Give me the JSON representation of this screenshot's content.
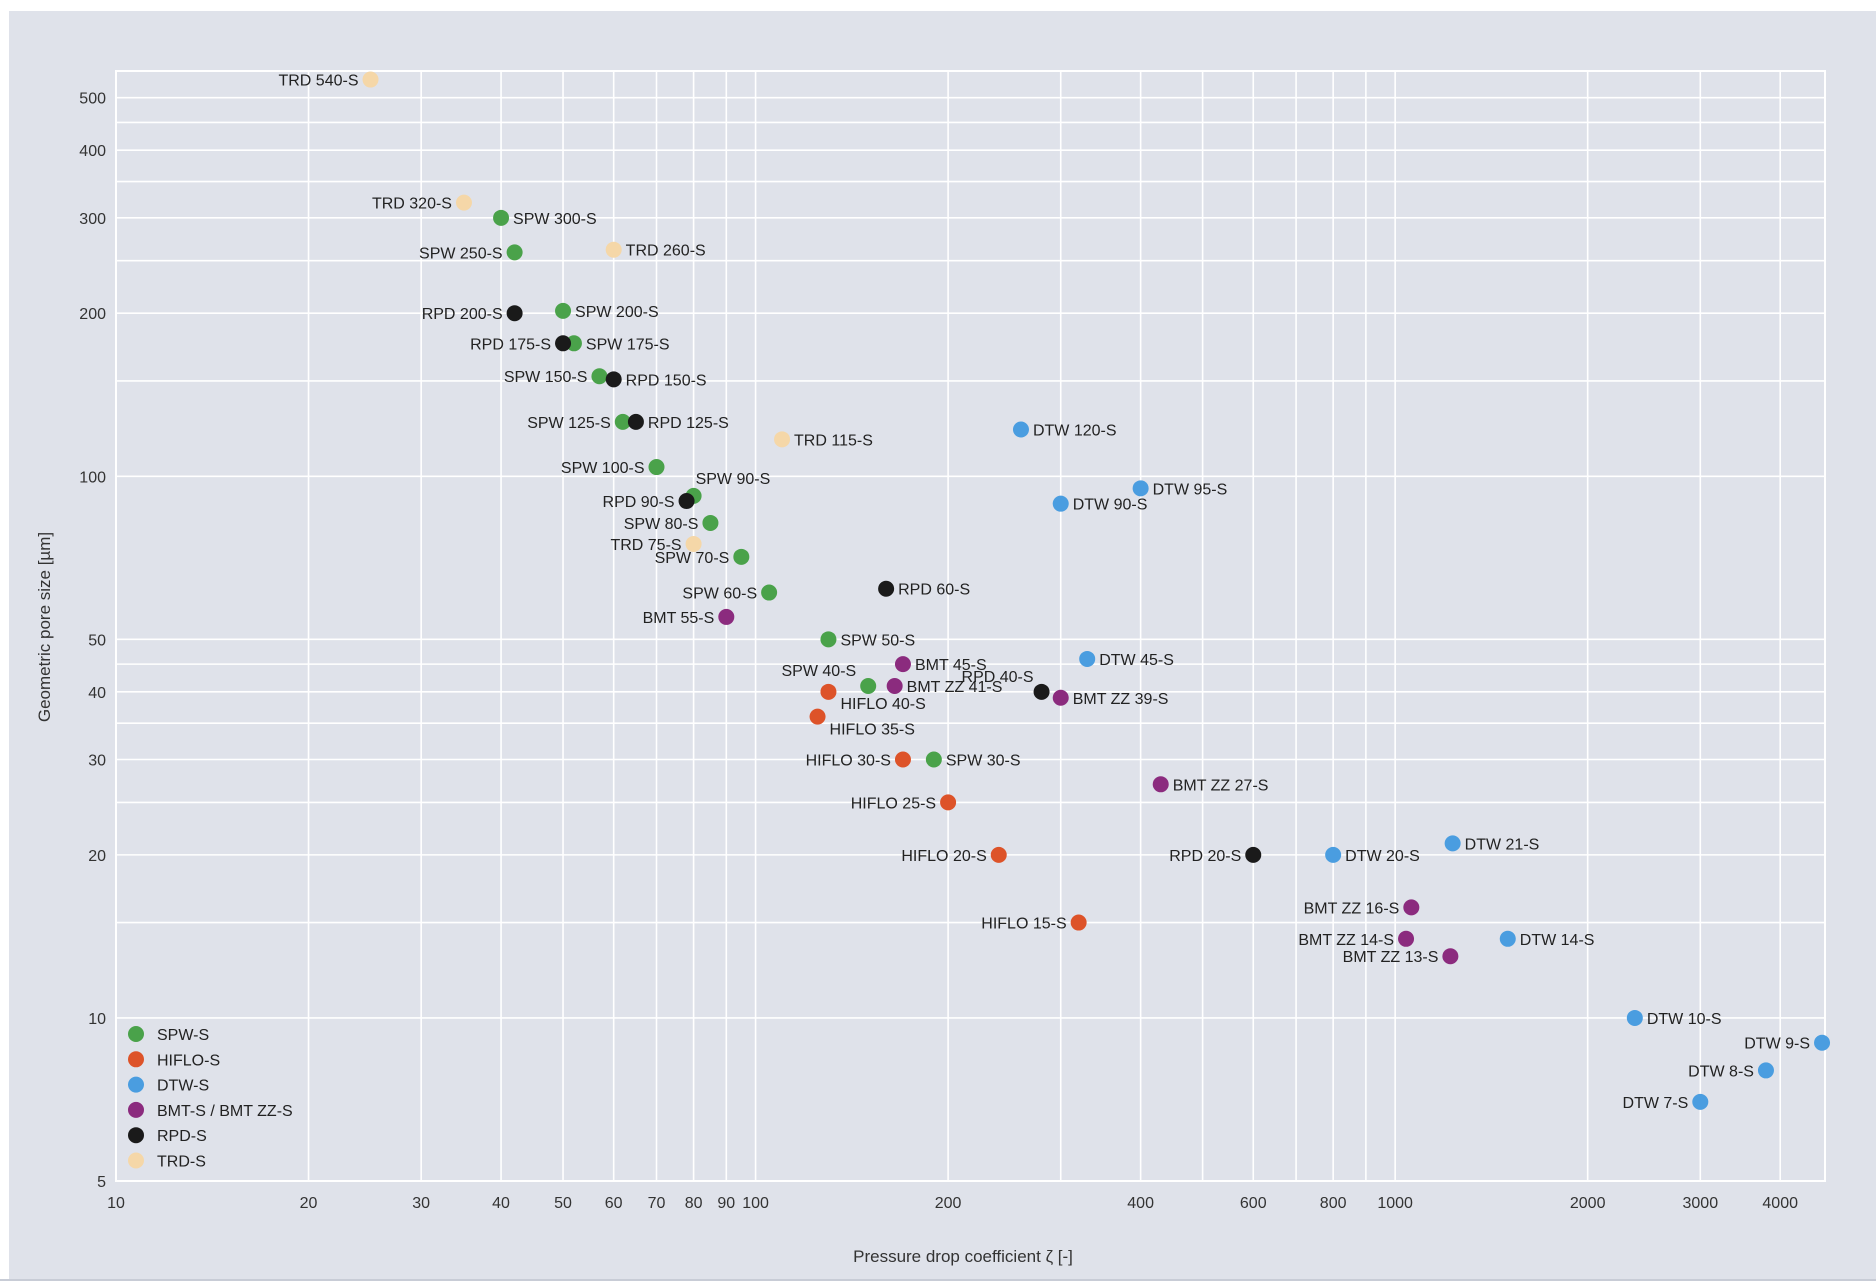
{
  "chart_data": {
    "type": "scatter",
    "xlabel": "Pressure drop coefficient ζ [-]",
    "ylabel": "Geometric pore size [µm]",
    "x_scale": "log",
    "y_scale": "log",
    "xlim": [
      10,
      4700
    ],
    "ylim": [
      5,
      560
    ],
    "grid": true,
    "legend_position": "bottom-left",
    "x_ticks": [
      10,
      20,
      30,
      40,
      50,
      60,
      70,
      80,
      90,
      100,
      200,
      400,
      600,
      800,
      1000,
      2000,
      3000,
      4000
    ],
    "x_gridlines": [
      10,
      20,
      30,
      40,
      50,
      60,
      70,
      80,
      90,
      100,
      200,
      300,
      400,
      500,
      600,
      700,
      800,
      900,
      1000,
      2000,
      3000,
      4000
    ],
    "y_ticks": [
      5,
      10,
      20,
      30,
      40,
      50,
      100,
      200,
      300,
      400,
      500
    ],
    "y_gridlines": [
      5,
      10,
      15,
      20,
      25,
      30,
      35,
      40,
      45,
      50,
      100,
      150,
      200,
      250,
      300,
      350,
      400,
      450,
      500
    ],
    "series": [
      {
        "name": "SPW-S",
        "color": "#4aa24a",
        "points": [
          {
            "label": "SPW 300-S",
            "x": 40,
            "y": 300
          },
          {
            "label": "SPW 250-S",
            "x": 42,
            "y": 259
          },
          {
            "label": "SPW 200-S",
            "x": 50,
            "y": 202
          },
          {
            "label": "SPW 175-S",
            "x": 52,
            "y": 176
          },
          {
            "label": "SPW 150-S",
            "x": 57,
            "y": 153
          },
          {
            "label": "SPW 125-S",
            "x": 62,
            "y": 126
          },
          {
            "label": "SPW 100-S",
            "x": 70,
            "y": 104
          },
          {
            "label": "SPW 90-S",
            "x": 80,
            "y": 92
          },
          {
            "label": "SPW 80-S",
            "x": 85,
            "y": 82
          },
          {
            "label": "SPW 70-S",
            "x": 95,
            "y": 71
          },
          {
            "label": "SPW 60-S",
            "x": 105,
            "y": 61
          },
          {
            "label": "SPW 50-S",
            "x": 130,
            "y": 50
          },
          {
            "label": "SPW 40-S",
            "x": 150,
            "y": 41
          },
          {
            "label": "SPW 30-S",
            "x": 190,
            "y": 30
          }
        ]
      },
      {
        "name": "HIFLO-S",
        "color": "#dd5329",
        "points": [
          {
            "label": "HIFLO 40-S",
            "x": 130,
            "y": 40
          },
          {
            "label": "HIFLO 35-S",
            "x": 125,
            "y": 36
          },
          {
            "label": "HIFLO 30-S",
            "x": 170,
            "y": 30
          },
          {
            "label": "HIFLO 25-S",
            "x": 200,
            "y": 25
          },
          {
            "label": "HIFLO 20-S",
            "x": 240,
            "y": 20
          },
          {
            "label": "HIFLO 15-S",
            "x": 320,
            "y": 15
          }
        ]
      },
      {
        "name": "DTW-S",
        "color": "#4a9de0",
        "points": [
          {
            "label": "DTW 120-S",
            "x": 260,
            "y": 122
          },
          {
            "label": "DTW 95-S",
            "x": 400,
            "y": 95
          },
          {
            "label": "DTW 90-S",
            "x": 300,
            "y": 89
          },
          {
            "label": "DTW 45-S",
            "x": 330,
            "y": 46
          },
          {
            "label": "DTW 21-S",
            "x": 1230,
            "y": 21
          },
          {
            "label": "DTW 20-S",
            "x": 800,
            "y": 20
          },
          {
            "label": "DTW 14-S",
            "x": 1500,
            "y": 14
          },
          {
            "label": "DTW 10-S",
            "x": 2370,
            "y": 10
          },
          {
            "label": "DTW 9-S",
            "x": 4650,
            "y": 9
          },
          {
            "label": "DTW 8-S",
            "x": 3800,
            "y": 8
          },
          {
            "label": "DTW 7-S",
            "x": 3000,
            "y": 7
          }
        ]
      },
      {
        "name": "BMT-S / BMT ZZ-S",
        "color": "#8b2b7e",
        "points": [
          {
            "label": "BMT 55-S",
            "x": 90,
            "y": 55
          },
          {
            "label": "BMT 45-S",
            "x": 170,
            "y": 45
          },
          {
            "label": "BMT ZZ 41-S",
            "x": 165,
            "y": 41
          },
          {
            "label": "BMT ZZ 39-S",
            "x": 300,
            "y": 39
          },
          {
            "label": "BMT ZZ 27-S",
            "x": 430,
            "y": 27
          },
          {
            "label": "BMT ZZ 16-S",
            "x": 1060,
            "y": 16
          },
          {
            "label": "BMT ZZ 14-S",
            "x": 1040,
            "y": 14
          },
          {
            "label": "BMT ZZ 13-S",
            "x": 1220,
            "y": 13
          }
        ]
      },
      {
        "name": "RPD-S",
        "color": "#1a1a1a",
        "points": [
          {
            "label": "RPD 200-S",
            "x": 42,
            "y": 200
          },
          {
            "label": "RPD 175-S",
            "x": 50,
            "y": 176
          },
          {
            "label": "RPD 150-S",
            "x": 60,
            "y": 151
          },
          {
            "label": "RPD 125-S",
            "x": 65,
            "y": 126
          },
          {
            "label": "RPD 90-S",
            "x": 78,
            "y": 90
          },
          {
            "label": "RPD 60-S",
            "x": 160,
            "y": 62
          },
          {
            "label": "RPD 40-S",
            "x": 280,
            "y": 40
          },
          {
            "label": "RPD 20-S",
            "x": 600,
            "y": 20
          }
        ]
      },
      {
        "name": "TRD-S",
        "color": "#f5d7a8",
        "points": [
          {
            "label": "TRD 540-S",
            "x": 25,
            "y": 540
          },
          {
            "label": "TRD 320-S",
            "x": 35,
            "y": 320
          },
          {
            "label": "TRD 260-S",
            "x": 60,
            "y": 262
          },
          {
            "label": "TRD 115-S",
            "x": 110,
            "y": 117
          },
          {
            "label": "TRD 75-S",
            "x": 80,
            "y": 75
          }
        ]
      }
    ]
  }
}
